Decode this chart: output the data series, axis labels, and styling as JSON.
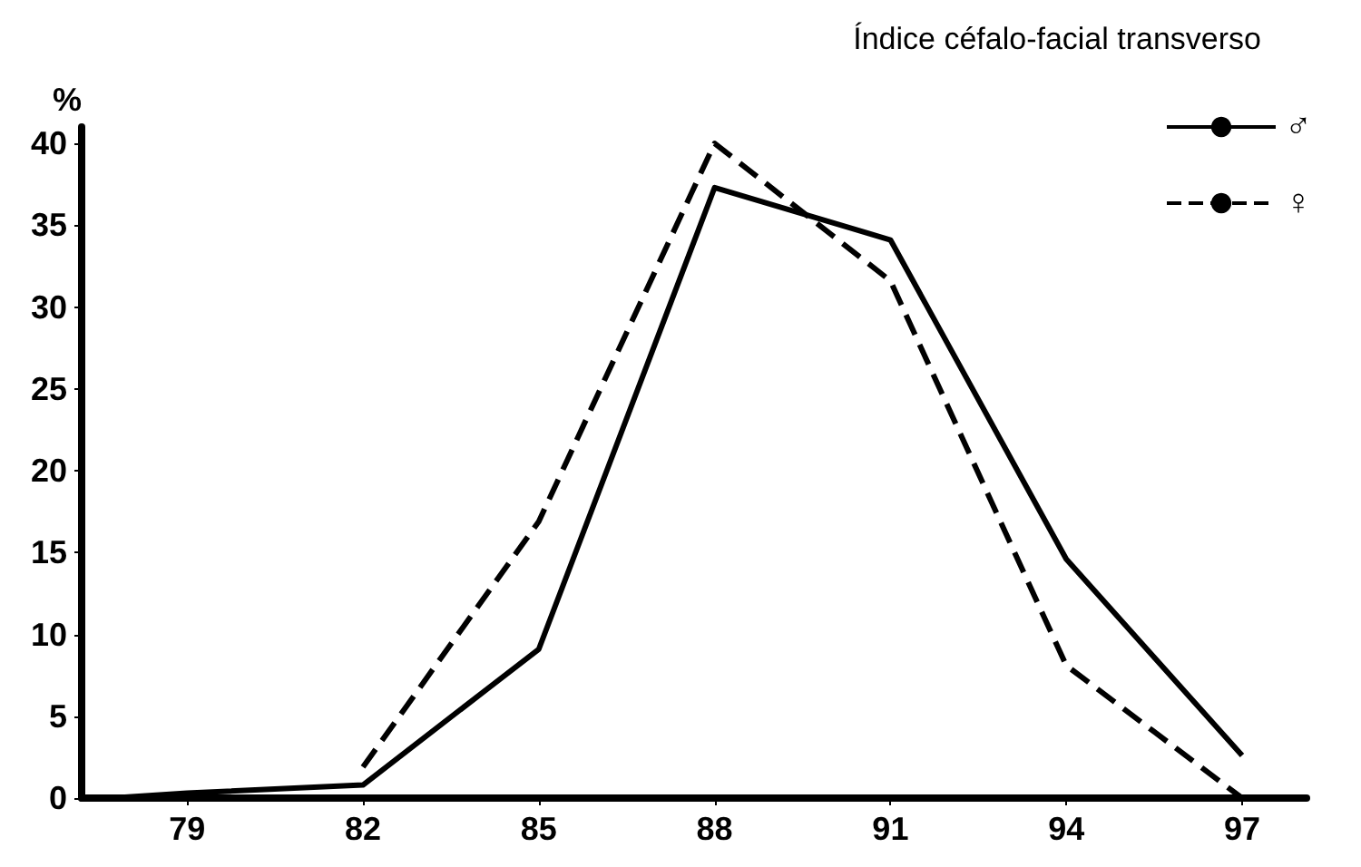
{
  "chart_data": {
    "type": "line",
    "title": "Índice céfalo-facial transverso",
    "ylabel": "%",
    "xlim": [
      77.2,
      98.1
    ],
    "xticks": [
      79,
      82,
      85,
      88,
      91,
      94,
      97
    ],
    "ylim": [
      0,
      41
    ],
    "yticks": [
      0,
      5,
      10,
      15,
      20,
      25,
      30,
      35,
      40
    ],
    "series": [
      {
        "name": "♂",
        "color": "#000000",
        "line_style": "solid",
        "x": [
          77.7,
          79,
          82,
          85,
          88,
          91,
          94,
          97
        ],
        "values": [
          0,
          0.3,
          0.8,
          9.1,
          37.3,
          34.1,
          14.6,
          2.6
        ]
      },
      {
        "name": "♀",
        "color": "#000000",
        "line_style": "dashed",
        "x": [
          82,
          85,
          88,
          91,
          94,
          97
        ],
        "values": [
          1.9,
          16.9,
          40,
          31.6,
          8.1,
          0
        ]
      }
    ],
    "grid": false,
    "legend": "top right",
    "marker": "none"
  }
}
